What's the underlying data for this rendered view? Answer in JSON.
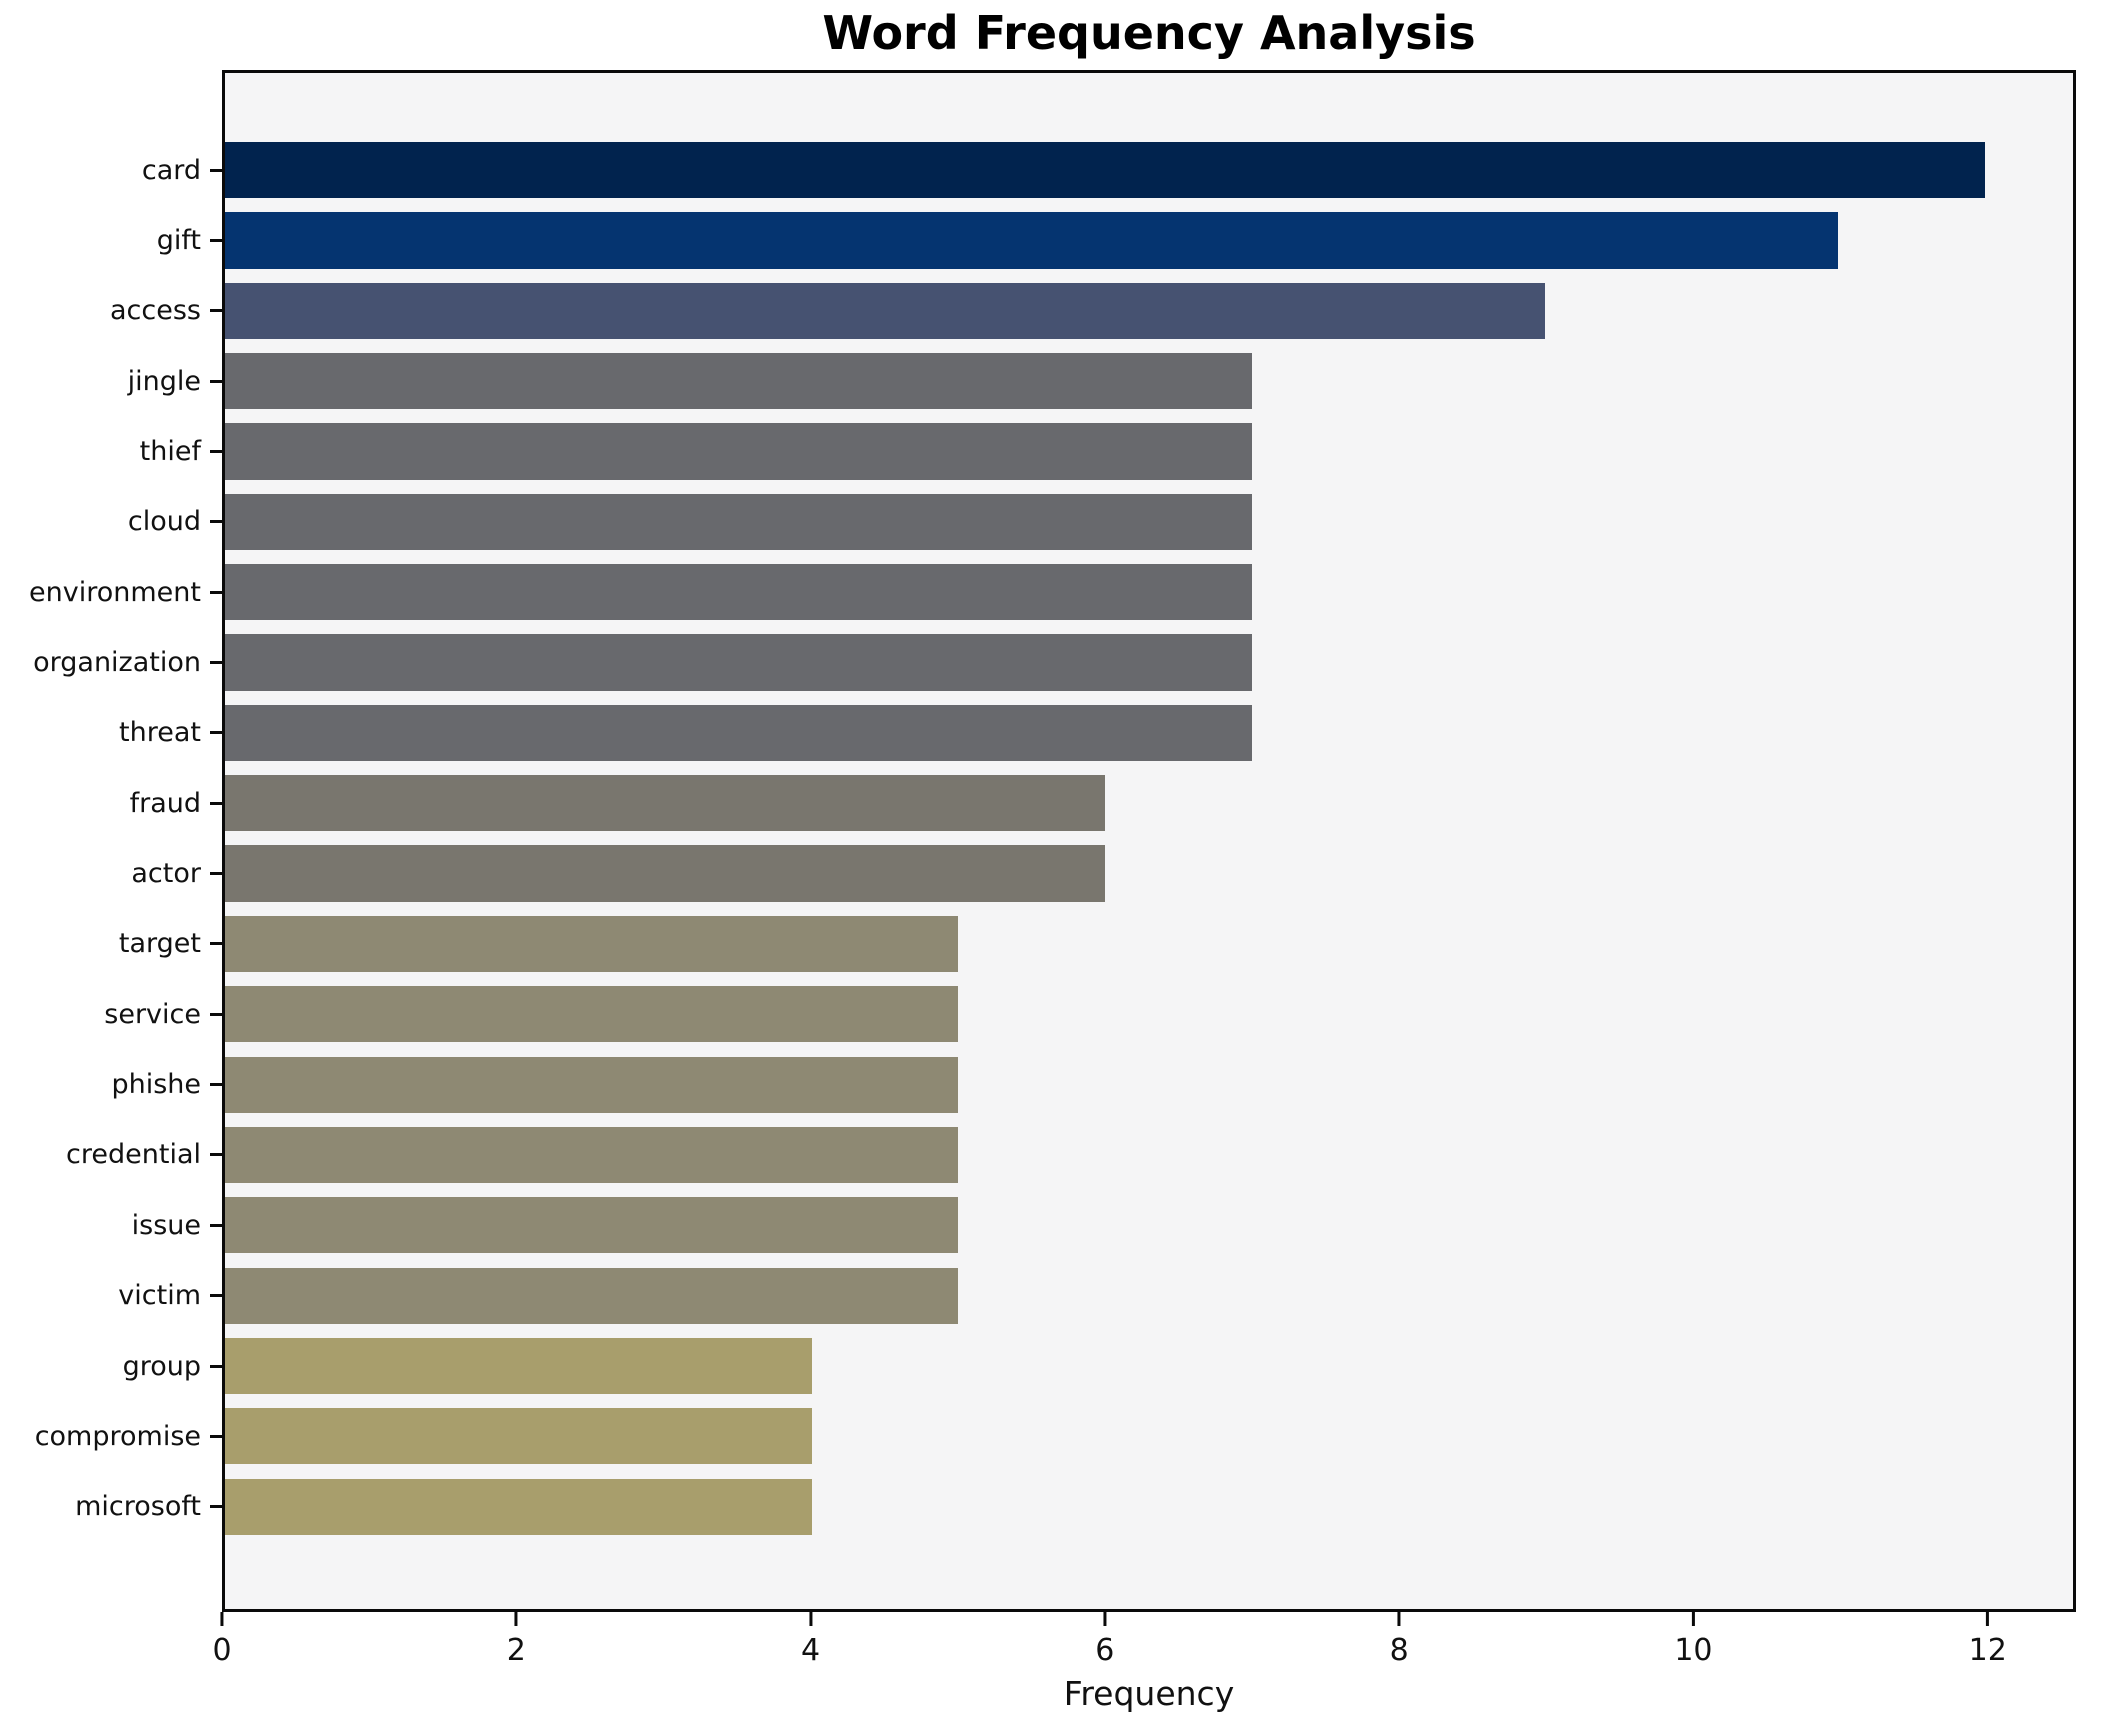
{
  "title": "Word Frequency Analysis",
  "colors": {
    "figure_background": "#ffffff",
    "plot_background": "#f5f5f6",
    "spine": "#0a0a0a",
    "text": "#111111"
  },
  "chart_data": {
    "type": "bar",
    "orientation": "horizontal",
    "title": "Word Frequency Analysis",
    "xlabel": "Frequency",
    "ylabel": "",
    "xlim": [
      0,
      12.6
    ],
    "x_ticks": [
      0,
      2,
      4,
      6,
      8,
      10,
      12
    ],
    "grid": false,
    "legend": null,
    "categories": [
      "card",
      "gift",
      "access",
      "jingle",
      "thief",
      "cloud",
      "environment",
      "organization",
      "threat",
      "fraud",
      "actor",
      "target",
      "service",
      "phishe",
      "credential",
      "issue",
      "victim",
      "group",
      "compromise",
      "microsoft"
    ],
    "values": [
      12,
      11,
      9,
      7,
      7,
      7,
      7,
      7,
      7,
      6,
      6,
      5,
      5,
      5,
      5,
      5,
      5,
      4,
      4,
      4
    ],
    "bar_colors": [
      "#01234e",
      "#053470",
      "#465271",
      "#68696d",
      "#68696d",
      "#68696d",
      "#68696d",
      "#68696d",
      "#68696d",
      "#79766e",
      "#79766e",
      "#8e8973",
      "#8e8973",
      "#8e8973",
      "#8e8973",
      "#8e8973",
      "#8e8973",
      "#a89e6c",
      "#a89e6c",
      "#a89e6c"
    ]
  }
}
